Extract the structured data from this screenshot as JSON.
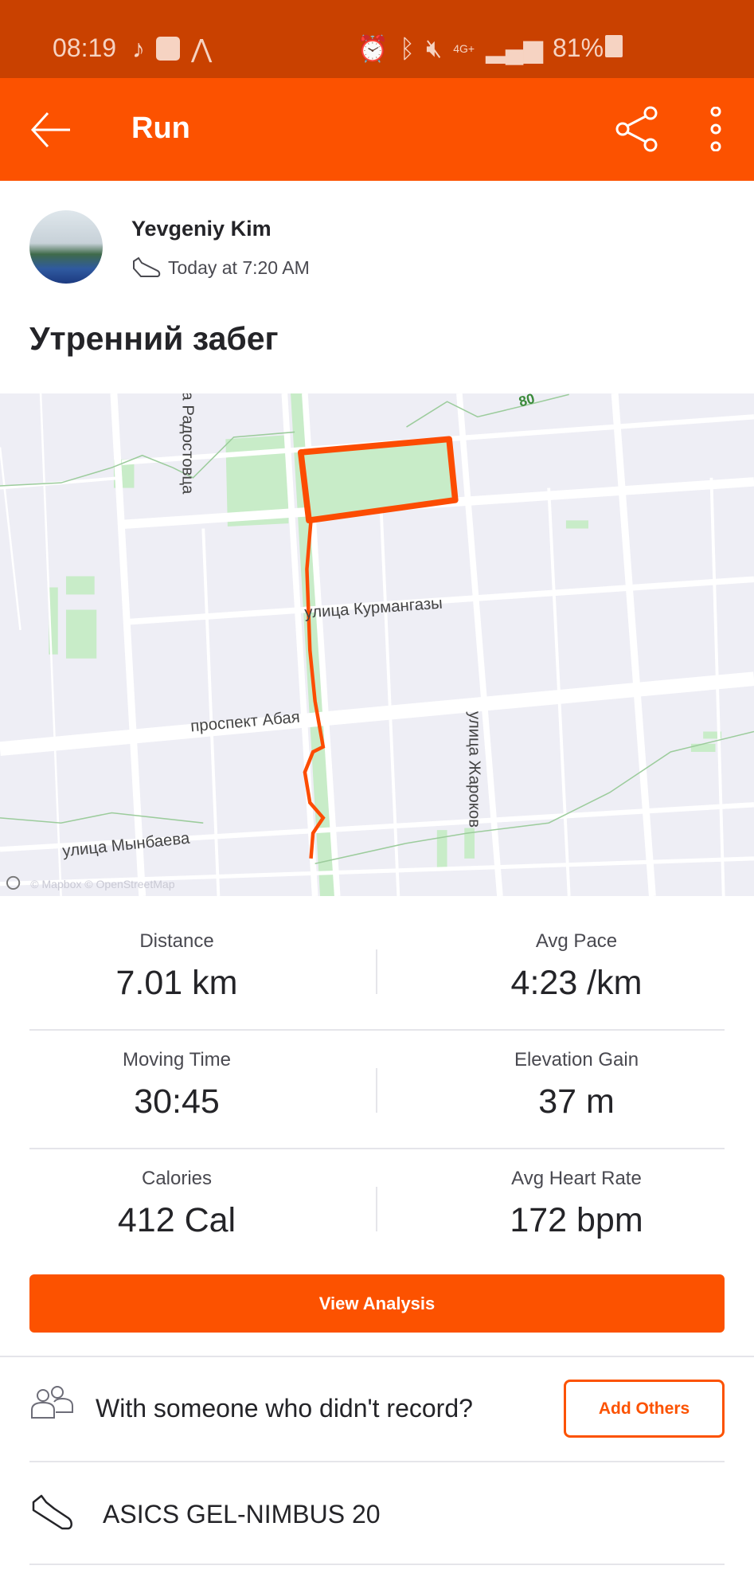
{
  "status_bar": {
    "time": "08:19",
    "battery": "81%",
    "network": "4G+",
    "battery_level": 81
  },
  "app_bar": {
    "title": "Run",
    "icons": [
      "back-arrow-icon",
      "share-icon",
      "more-vertical-icon"
    ]
  },
  "athlete": {
    "name": "Yevgeniy Kim",
    "timestamp": "Today at 7:20 AM"
  },
  "activity": {
    "title": "Утренний забег"
  },
  "map": {
    "labels": {
      "radostovtsa": "а Радостовца",
      "kurmangazy": "улица Курмангазы",
      "abay": "проспект Абая",
      "zharokov": "улица Жароков",
      "mynbaeva": "улица Мынбаева",
      "road_number": "80"
    },
    "attribution": "© Mapbox © OpenStreetMap",
    "route_color": "#fc4c02",
    "park_color": "#c8ecc8"
  },
  "stats": [
    {
      "label": "Distance",
      "value": "7.01 km"
    },
    {
      "label": "Avg Pace",
      "value": "4:23 /km"
    },
    {
      "label": "Moving Time",
      "value": "30:45"
    },
    {
      "label": "Elevation Gain",
      "value": "37 m"
    },
    {
      "label": "Calories",
      "value": "412 Cal"
    },
    {
      "label": "Avg Heart Rate",
      "value": "172 bpm"
    }
  ],
  "actions": {
    "view_analysis": "View Analysis",
    "with_someone": "With someone who didn't record?",
    "add_others": "Add Others"
  },
  "gear": {
    "shoe": "ASICS GEL-NIMBUS 20"
  },
  "colors": {
    "brand": "#fc5200",
    "status_bar": "#c94100"
  }
}
